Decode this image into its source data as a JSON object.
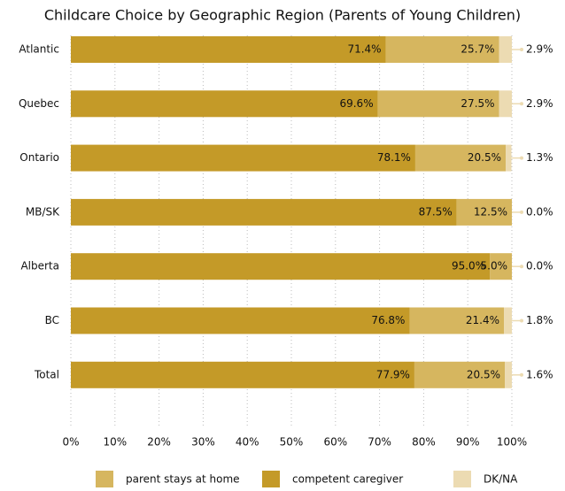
{
  "chart_data": {
    "type": "stacked-bar-horizontal",
    "title": "Childcare Choice by Geographic Region (Parents of Young Children)",
    "categories": [
      "Atlantic",
      "Quebec",
      "Ontario",
      "MB/SK",
      "Alberta",
      "BC",
      "Total"
    ],
    "series": [
      {
        "name": "competent caregiver",
        "color": "#c49a28",
        "values": [
          71.4,
          69.6,
          78.1,
          87.5,
          95.0,
          76.8,
          77.9
        ],
        "value_labels": [
          "71.4%",
          "69.6%",
          "78.1%",
          "87.5%",
          "95.0%",
          "76.8%",
          "77.9%"
        ]
      },
      {
        "name": "parent stays at home",
        "color": "#d6b65f",
        "values": [
          25.7,
          27.5,
          20.5,
          12.5,
          5.0,
          21.4,
          20.5
        ],
        "value_labels": [
          "25.7%",
          "27.5%",
          "20.5%",
          "12.5%",
          "5.0%",
          "21.4%",
          "20.5%"
        ]
      },
      {
        "name": "DK/NA",
        "color": "#ecdbb2",
        "values": [
          2.9,
          2.9,
          1.3,
          0.0,
          0.0,
          1.8,
          1.6
        ],
        "value_labels": [
          "2.9%",
          "2.9%",
          "1.3%",
          "0.0%",
          "0.0%",
          "1.8%",
          "1.6%"
        ]
      }
    ],
    "xlim": [
      0,
      100
    ],
    "xticks": [
      {
        "value": 0,
        "label": "0%"
      },
      {
        "value": 10,
        "label": "10%"
      },
      {
        "value": 20,
        "label": "20%"
      },
      {
        "value": 30,
        "label": "30%"
      },
      {
        "value": 40,
        "label": "40%"
      },
      {
        "value": 50,
        "label": "50%"
      },
      {
        "value": 60,
        "label": "60%"
      },
      {
        "value": 70,
        "label": "70%"
      },
      {
        "value": 80,
        "label": "80%"
      },
      {
        "value": 90,
        "label": "90%"
      },
      {
        "value": 100,
        "label": "100%"
      }
    ],
    "grid": true
  }
}
